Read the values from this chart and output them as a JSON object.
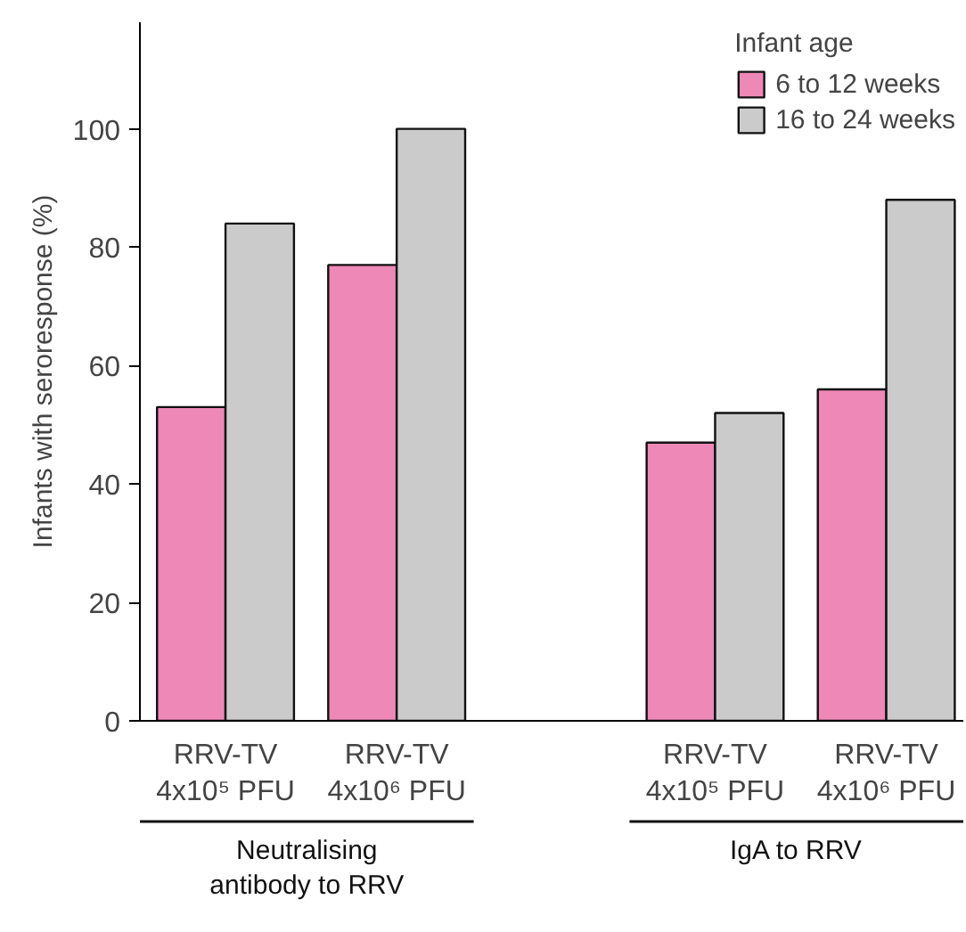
{
  "chart_data": {
    "type": "bar",
    "ylabel": "Infants with seroresponse (%)",
    "legend_title": "Infant age",
    "legend": "top right",
    "categories": [
      "RRV-TV\n4x10⁵ PFU",
      "RRV-TV\n4x10⁶ PFU",
      "RRV-TV\n4x10⁵ PFU",
      "RRV-TV\n4x10⁶ PFU"
    ],
    "series": [
      {
        "name": "6 to 12 weeks",
        "color": "#ee88b7",
        "values": [
          53,
          77,
          47,
          56
        ]
      },
      {
        "name": "16 to 24 weeks",
        "color": "#cbcbcb",
        "values": [
          84,
          100,
          52,
          88
        ]
      }
    ],
    "ylim": [
      0,
      118
    ],
    "yticks": [
      0,
      20,
      40,
      60,
      80,
      100
    ],
    "annotations": [
      "Neutralising\nantibody to RRV",
      "IgA to RRV"
    ]
  }
}
